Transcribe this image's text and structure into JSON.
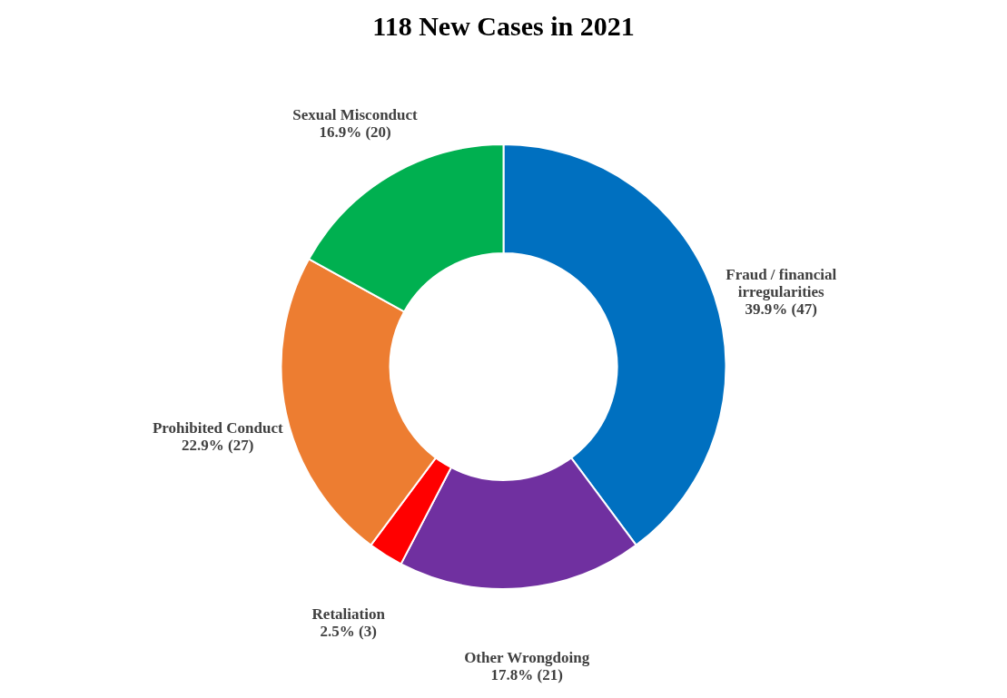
{
  "chart_data": {
    "type": "donut",
    "title": "118 New Cases in 2021",
    "categories": [
      "Fraud / financial irregularities",
      "Other Wrongdoing",
      "Retaliation",
      "Prohibited Conduct",
      "Sexual Misconduct"
    ],
    "values": [
      47,
      21,
      3,
      27,
      20
    ],
    "value_labels": [
      "39.9% (47)",
      "17.8% (21)",
      "2.5% (3)",
      "22.9% (27)",
      "16.9% (20)"
    ],
    "colors": [
      "#0070c0",
      "#7030a0",
      "#ff0000",
      "#ed7d31",
      "#00b050"
    ],
    "legend": false
  }
}
